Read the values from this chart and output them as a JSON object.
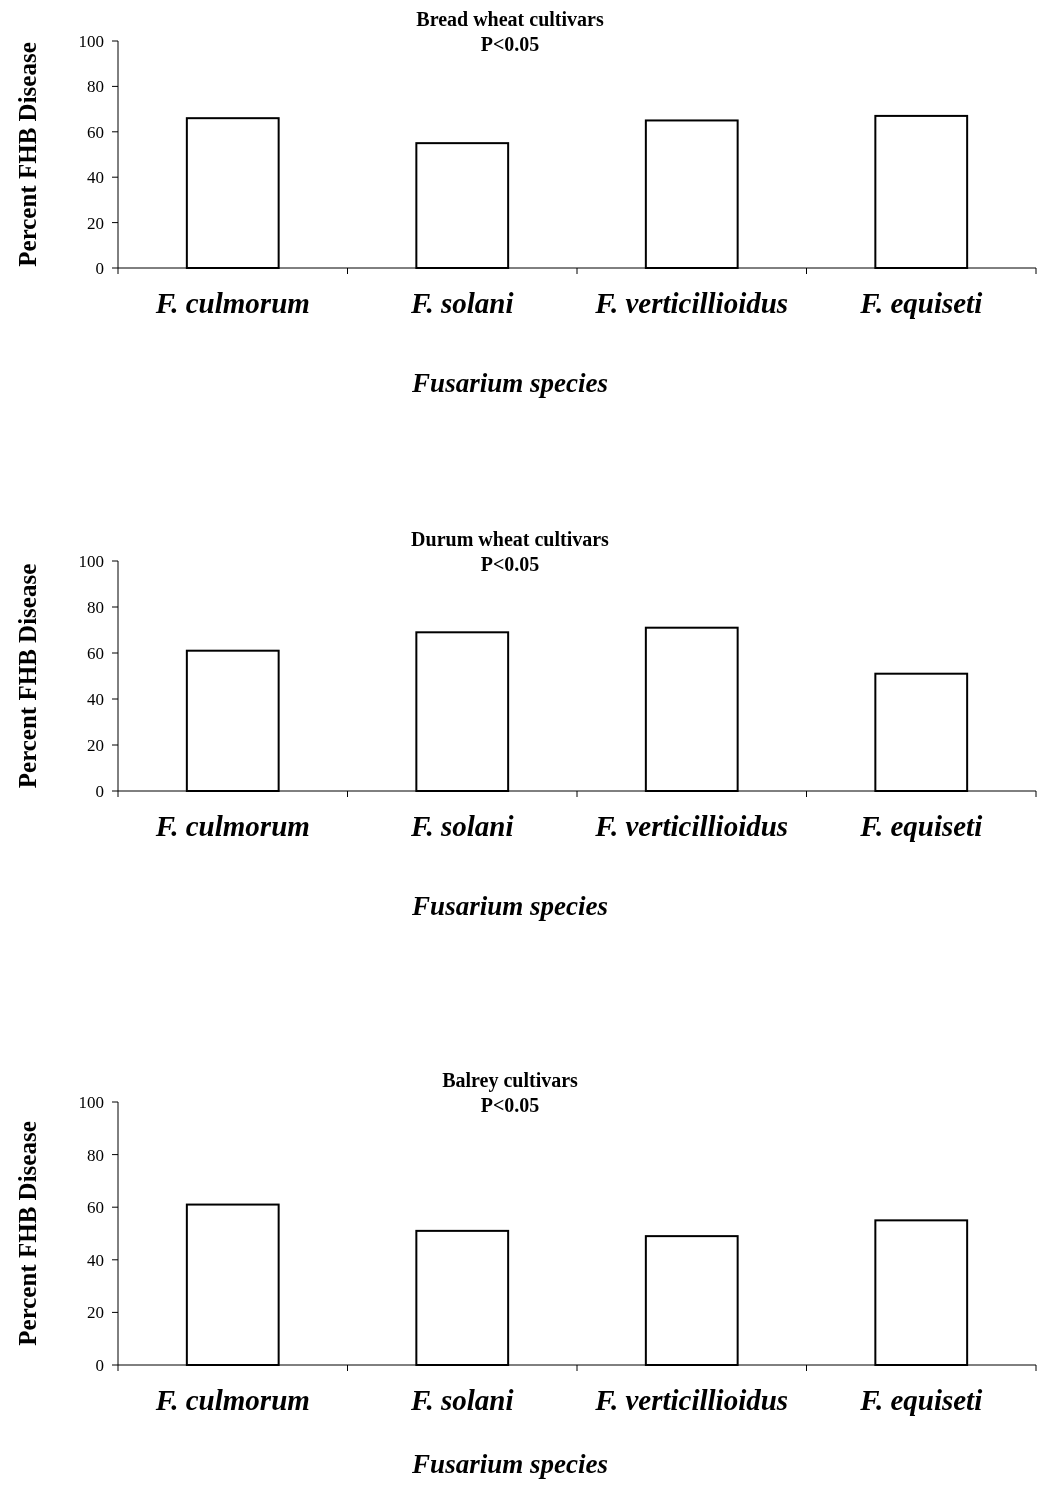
{
  "chart_data": [
    {
      "type": "bar",
      "title": "Bread wheat cultivars",
      "subtitle": "P<0.05",
      "xlabel": "Fusarium species",
      "ylabel": "Percent FHB Disease",
      "categories": [
        "F. culmorum",
        "F. solani",
        "F. verticillioidus",
        "F. equiseti"
      ],
      "values": [
        66,
        55,
        65,
        67
      ],
      "color": "#ffffff",
      "ylim": [
        0,
        100
      ],
      "yticks": [
        0,
        20,
        40,
        60,
        80,
        100
      ]
    },
    {
      "type": "bar",
      "title": "Durum wheat cultivars",
      "subtitle": "P<0.05",
      "xlabel": "Fusarium species",
      "ylabel": "Percent FHB Disease",
      "categories": [
        "F. culmorum",
        "F. solani",
        "F. verticillioidus",
        "F. equiseti"
      ],
      "values": [
        61,
        69,
        71,
        51
      ],
      "color": "#ffffff",
      "ylim": [
        0,
        100
      ],
      "yticks": [
        0,
        20,
        40,
        60,
        80,
        100
      ]
    },
    {
      "type": "bar",
      "title": "Balrey cultivars",
      "subtitle": "P<0.05",
      "xlabel": "Fusarium species",
      "ylabel": "Percent FHB Disease",
      "categories": [
        "F. culmorum",
        "F. solani",
        "F. verticillioidus",
        "F. equiseti"
      ],
      "values": [
        61,
        51,
        49,
        55
      ],
      "color": "#ffffff",
      "ylim": [
        0,
        100
      ],
      "yticks": [
        0,
        20,
        40,
        60,
        80,
        100
      ]
    }
  ]
}
